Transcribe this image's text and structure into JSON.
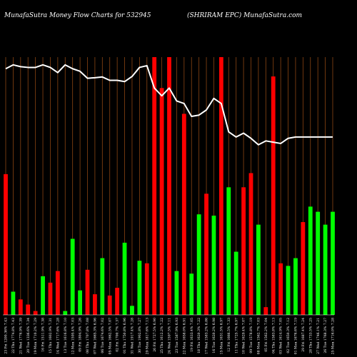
{
  "header": {
    "title_left": "MunafaSutra  Money Flow  Charts for 532945",
    "title_right": "(SHRIRAM EPC) MunafaSutra.com"
  },
  "colors": {
    "background": "#000000",
    "up": "#00ff00",
    "down": "#ff0000",
    "grid": "#8b4513",
    "line": "#ffffff",
    "text": "#ffffff"
  },
  "chart_data": {
    "type": "bar",
    "ylim": [
      0,
      100
    ],
    "categories": [
      "23 Fri 1200.36% 7.43",
      "22 Thu 1774.8% 7.43",
      "21 Wed 1776.9% 7.39",
      "20 Tue 1336.6% 7.34",
      "19 Mon 1710.2% 7.29",
      "16 Fri 1511.9% 7.38",
      "15 Thu 1602.9% 7.31",
      "14 Wed 1717.6% 7.28",
      "13 Tue 1616.8% 7.10",
      "12 Mon 1595.4% 7.03",
      "09 Fri 1804.9% 7.26",
      "08 Thu 1707.8% 7.08",
      "07 Wed 1665.3% 6.96",
      "06 Tue 1674.6% 7.02",
      "05 Mon 1662.5% 7.07",
      "02 Fri 1700.7% 7.37",
      "01 Thu 1750.8% 6.96",
      "31 Wed 1917.4% 7.28",
      "30 Tue 1902.8% 7.27",
      "29 Mon 1817.6% 7.13",
      "26 Fri 1727.5% 6.90",
      "25 Thu 1612.2% 7.22",
      "24 Wed 1597.5% 7.11",
      "23 Tue 1587.9% 6.93",
      "22 Mon 1658.0% 6.91",
      "19 Fri 1633.4% 7.05",
      "18 Thu 1620.3% 7.22",
      "17 Wed 1583.2% 6.86",
      "16 Tue 1620.2% 6.98",
      "15 Mon 1631.5% 6.97",
      "12 Fri 1666.5% 7.33",
      "11 Thu 1725.7% 6.97",
      "10 Wed 1629.4% 7.07",
      "09 Tue 1578.8% 7.19",
      "08 Mon 1562.7% 7.03",
      "05 Fri 1562.2% 7.04",
      "04 Thu 1583.8% 7.13",
      "03 Wed 1614.9% 7.05",
      "02 Tue 1650.3% 7.12",
      "01 Mon 1676.6% 7.19",
      "29 Fri 1687.4% 7.24",
      "28 Thu 1733.5% 7.25",
      "27 Wed 1746.1% 7.21",
      "26 Tue 1768.3% 7.27",
      "25 Mon 1716.0% 7.28"
    ],
    "colors": [
      "down",
      "up",
      "down",
      "down",
      "down",
      "up",
      "down",
      "down",
      "up",
      "up",
      "up",
      "down",
      "down",
      "up",
      "down",
      "down",
      "up",
      "up",
      "up",
      "down",
      "down",
      "down",
      "down",
      "up",
      "down",
      "up",
      "up",
      "down",
      "up",
      "down",
      "up",
      "up",
      "down",
      "down",
      "up",
      "down",
      "down",
      "down",
      "up",
      "up",
      "down",
      "up",
      "up",
      "up",
      "up"
    ],
    "values": [
      54.6,
      9.0,
      6.0,
      4.0,
      1.5,
      15.0,
      12.5,
      17.0,
      1.5,
      29.5,
      9.5,
      17.5,
      8.0,
      22.0,
      7.5,
      10.5,
      28.0,
      3.5,
      21.0,
      20.0,
      100,
      88.0,
      100,
      17.0,
      78.0,
      16.0,
      39.0,
      47.0,
      38.5,
      100,
      49.5,
      24.5,
      49.5,
      55.0,
      35.0,
      3.0,
      92.5,
      20.0,
      19.0,
      22.0,
      36.0,
      42.0,
      40.0,
      35.0,
      40.0
    ],
    "line": [
      95.5,
      97.0,
      96.3,
      96.0,
      96.0,
      97.0,
      96.0,
      94.0,
      97.0,
      95.5,
      94.5,
      91.8,
      92.0,
      92.3,
      91.0,
      91.0,
      90.5,
      92.5,
      96.0,
      96.7,
      88.0,
      85.0,
      88.0,
      83.0,
      82.0,
      77.0,
      77.5,
      79.5,
      84.0,
      82.0,
      71.0,
      69.0,
      70.5,
      68.5,
      66.0,
      67.5,
      67.0,
      66.5,
      68.5,
      69.0,
      69.0,
      69.0,
      69.0,
      69.0,
      69.0
    ]
  }
}
